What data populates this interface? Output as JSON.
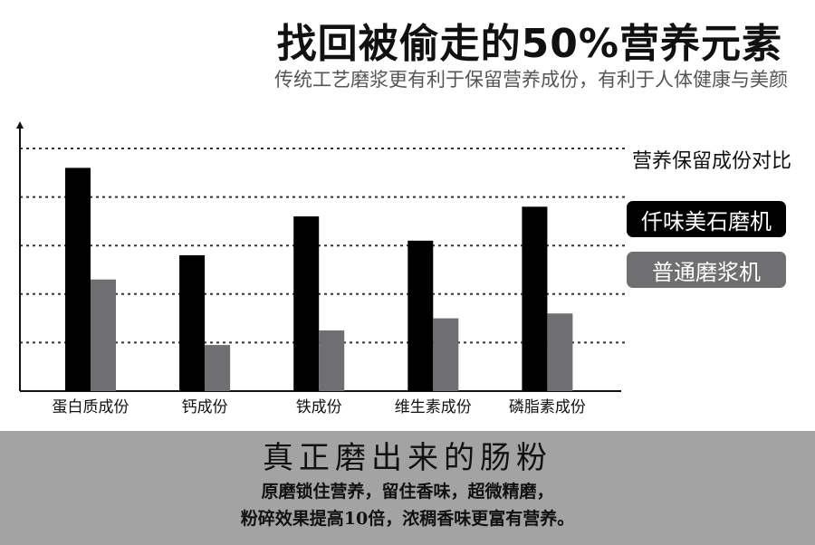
{
  "header": {
    "title": "找回被偷走的50%营养元素",
    "subtitle": "传统工艺磨浆更有利于保留营养成份，有利于人体健康与美颜"
  },
  "legend": {
    "title": "营养保留成份对比",
    "items": [
      {
        "label": "仟味美石磨机",
        "color": "#000000"
      },
      {
        "label": "普通磨浆机",
        "color": "#6f6f72"
      }
    ]
  },
  "chart_data": {
    "type": "bar",
    "categories": [
      "蛋白质成份",
      "钙成份",
      "铁成份",
      "维生素成份",
      "磷脂素成份"
    ],
    "series": [
      {
        "name": "仟味美石磨机",
        "values": [
          4.6,
          2.8,
          3.6,
          3.1,
          3.8
        ]
      },
      {
        "name": "普通磨浆机",
        "values": [
          2.3,
          0.95,
          1.25,
          1.5,
          1.6
        ]
      }
    ],
    "ylim": [
      0,
      5
    ],
    "grid": true,
    "legend_position": "right"
  },
  "footer": {
    "title": "真正磨出来的肠粉",
    "line1": "原磨锁住营养，留住香味，超微精磨，",
    "line2": "粉碎效果提高10倍，浓稠香味更富有营养。"
  }
}
